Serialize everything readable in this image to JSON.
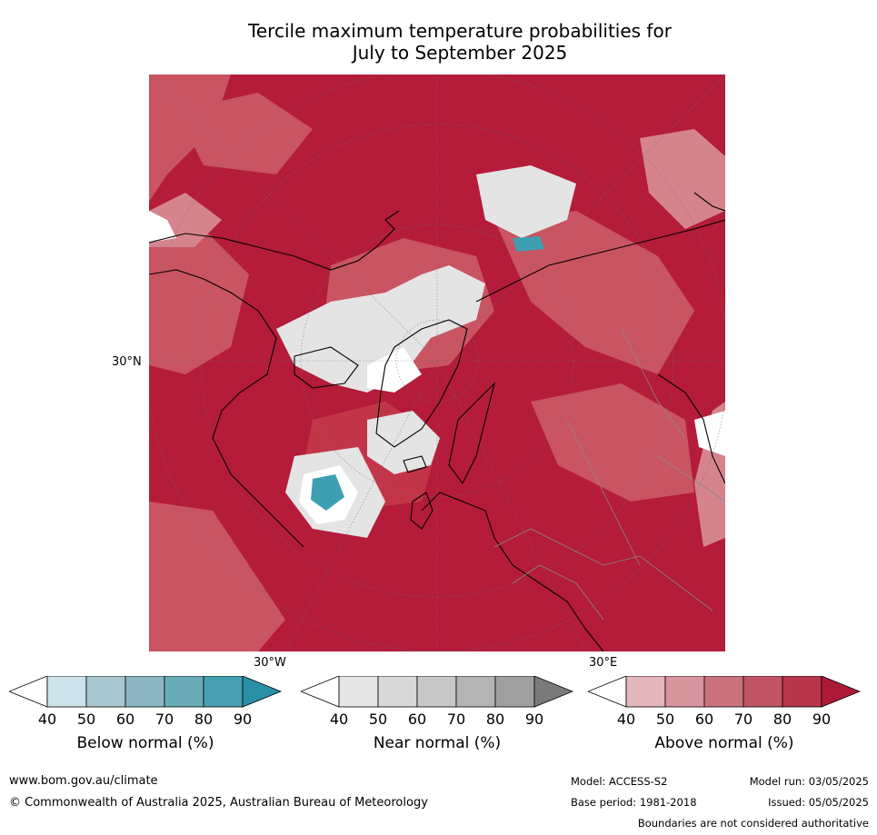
{
  "title_line1": "Tercile maximum temperature probabilities for",
  "title_line2": "July to September 2025",
  "map": {
    "lat_label": "30°N",
    "lon_label_left": "30°W",
    "lon_label_right": "30°E",
    "colors": {
      "above_90": "#b41c3a",
      "above_80": "#c23548",
      "above_70": "#c95462",
      "above_60": "#d5848e",
      "above_50": "#e0a8b0",
      "near": "#e4e4e4",
      "white": "#ffffff",
      "below": "#3e9fb2"
    }
  },
  "colorbars": [
    {
      "label": "Below normal (%)",
      "ticks": [
        "40",
        "50",
        "60",
        "70",
        "80",
        "90"
      ],
      "colors": [
        "#ffffff",
        "#cce3e9",
        "#a7c8ce",
        "#8cb6c1",
        "#6aabb8",
        "#46a0b1",
        "#2a90a6"
      ]
    },
    {
      "label": "Near normal (%)",
      "ticks": [
        "40",
        "50",
        "60",
        "70",
        "80",
        "90"
      ],
      "colors": [
        "#ffffff",
        "#e6e6e6",
        "#d8d8d8",
        "#c8c8c8",
        "#b4b4b4",
        "#a0a0a0",
        "#7a7a7a"
      ]
    },
    {
      "label": "Above normal (%)",
      "ticks": [
        "40",
        "50",
        "60",
        "70",
        "80",
        "90"
      ],
      "colors": [
        "#ffffff",
        "#e3b6bc",
        "#d7959e",
        "#ca737f",
        "#c25565",
        "#b8364b",
        "#ad1a37"
      ]
    }
  ],
  "footer": {
    "website": "www.bom.gov.au/climate",
    "copyright": "© Commonwealth of Australia 2025, Australian Bureau of Meteorology",
    "model": "Model: ACCESS-S2",
    "model_run": "Model run: 03/05/2025",
    "base_period": "Base period: 1981-2018",
    "issued": "Issued: 05/05/2025",
    "boundaries": "Boundaries are not considered authoritative"
  }
}
